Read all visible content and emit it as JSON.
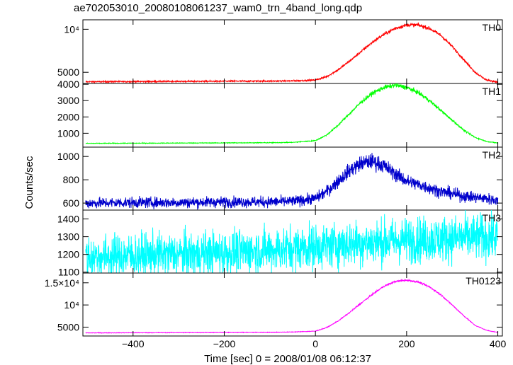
{
  "title": "ae702053010_20080108061237_wam0_trn_4band_long.qdp",
  "ylabel": "Counts/sec",
  "xlabel": "Time [sec] 0 = 2008/01/08 06:12:37",
  "chart_data": {
    "type": "line",
    "title": "ae702053010_20080108061237_wam0_trn_4band_long.qdp",
    "xlabel": "Time [sec] 0 = 2008/01/08 06:12:37",
    "ylabel": "Counts/sec",
    "xlim": [
      -510,
      410
    ],
    "x_ticks": [
      -400,
      -200,
      0,
      200,
      400
    ],
    "x_tick_labels": [
      "−400",
      "−200",
      "0",
      "200",
      "400"
    ],
    "grid": false,
    "panels": [
      {
        "name": "TH0",
        "color": "#ff0000",
        "ylim": [
          3700,
          11100
        ],
        "y_ticks": [
          5000,
          10000
        ],
        "y_tick_labels": [
          "5000",
          "10⁴"
        ],
        "x": [
          -500,
          -400,
          -300,
          -200,
          -100,
          -50,
          0,
          25,
          50,
          75,
          100,
          125,
          150,
          175,
          200,
          225,
          250,
          275,
          300,
          325,
          350,
          375,
          400
        ],
        "values": [
          3900,
          3920,
          3940,
          3960,
          3980,
          4000,
          4100,
          4500,
          5300,
          6300,
          7400,
          8500,
          9400,
          10100,
          10500,
          10500,
          10100,
          9300,
          8000,
          6500,
          5000,
          4100,
          3850
        ]
      },
      {
        "name": "TH1",
        "color": "#00ff00",
        "ylim": [
          150,
          4050
        ],
        "y_ticks": [
          1000,
          2000,
          3000,
          4000
        ],
        "y_tick_labels": [
          "1000",
          "2000",
          "3000",
          "4000"
        ],
        "x": [
          -500,
          -400,
          -300,
          -200,
          -100,
          -50,
          0,
          25,
          50,
          75,
          100,
          125,
          150,
          175,
          200,
          225,
          250,
          275,
          300,
          325,
          350,
          375,
          400
        ],
        "values": [
          380,
          390,
          400,
          410,
          420,
          440,
          550,
          900,
          1500,
          2200,
          2900,
          3450,
          3800,
          3950,
          3800,
          3500,
          3000,
          2400,
          1800,
          1200,
          750,
          500,
          400
        ]
      },
      {
        "name": "TH2",
        "color": "#0000cc",
        "ylim": [
          540,
          1080
        ],
        "y_ticks": [
          600,
          800,
          1000
        ],
        "y_tick_labels": [
          "600",
          "800",
          "1000"
        ],
        "x": [
          -500,
          -400,
          -300,
          -200,
          -100,
          -50,
          0,
          25,
          50,
          75,
          100,
          125,
          150,
          175,
          200,
          225,
          250,
          275,
          300,
          325,
          350,
          375,
          400
        ],
        "values": [
          600,
          605,
          605,
          610,
          610,
          615,
          640,
          700,
          790,
          880,
          940,
          960,
          920,
          850,
          790,
          760,
          730,
          700,
          680,
          660,
          650,
          640,
          620
        ]
      },
      {
        "name": "TH3",
        "color": "#00ffff",
        "ylim": [
          1095,
          1450
        ],
        "y_ticks": [
          1100,
          1200,
          1300,
          1400
        ],
        "y_tick_labels": [
          "1100",
          "1200",
          "1300",
          "1400"
        ],
        "x": [
          -500,
          -400,
          -300,
          -200,
          -100,
          0,
          100,
          200,
          300,
          400
        ],
        "values": [
          1185,
          1195,
          1200,
          1210,
          1225,
          1245,
          1265,
          1280,
          1290,
          1300
        ]
      },
      {
        "name": "TH0123",
        "color": "#ff00ff",
        "ylim": [
          3000,
          17200
        ],
        "y_ticks": [
          5000,
          10000,
          15000
        ],
        "y_tick_labels": [
          "5000",
          "10⁴",
          "1.5×10⁴"
        ],
        "x": [
          -500,
          -400,
          -300,
          -200,
          -100,
          -50,
          0,
          25,
          50,
          75,
          100,
          125,
          150,
          175,
          200,
          225,
          250,
          275,
          300,
          325,
          350,
          375,
          400
        ],
        "values": [
          3700,
          3730,
          3760,
          3790,
          3820,
          3900,
          4100,
          4900,
          6400,
          8300,
          10400,
          12400,
          14200,
          15300,
          15600,
          15200,
          14100,
          12300,
          10000,
          7600,
          5400,
          4300,
          3800
        ]
      }
    ]
  }
}
